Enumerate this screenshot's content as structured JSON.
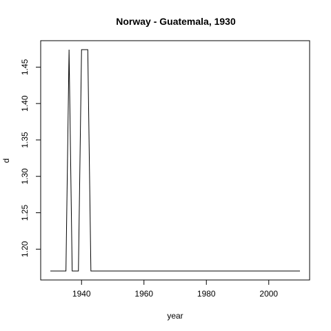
{
  "chart_data": {
    "type": "line",
    "title": "Norway - Guatemala, 1930",
    "xlabel": "year",
    "ylabel": "d",
    "xlim": [
      1930,
      2010
    ],
    "ylim": [
      1.17,
      1.474
    ],
    "x_ticks": [
      1940,
      1960,
      1980,
      2000
    ],
    "y_ticks": [
      1.2,
      1.25,
      1.3,
      1.35,
      1.4,
      1.45
    ],
    "y_tick_labels": [
      "1.20",
      "1.25",
      "1.30",
      "1.35",
      "1.40",
      "1.45"
    ],
    "series": [
      {
        "points": [
          [
            1930,
            1.17
          ],
          [
            1935,
            1.17
          ],
          [
            1936,
            1.474
          ],
          [
            1937,
            1.17
          ],
          [
            1939,
            1.17
          ],
          [
            1940,
            1.474
          ],
          [
            1942,
            1.474
          ],
          [
            1943,
            1.17
          ],
          [
            1944,
            1.17
          ],
          [
            2010,
            1.17
          ]
        ],
        "color": "#000000"
      }
    ]
  }
}
